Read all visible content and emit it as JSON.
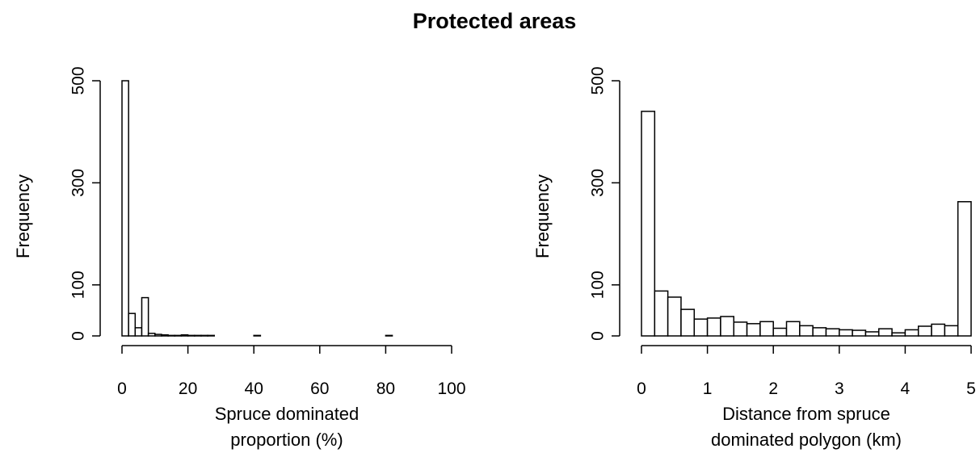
{
  "figure_title": "Protected areas",
  "chart_data": [
    {
      "type": "bar",
      "subtype": "histogram",
      "xlabel_lines": [
        "Spruce dominated",
        "proportion (%)"
      ],
      "ylabel": "Frequency",
      "xlim": [
        0,
        100
      ],
      "ylim": [
        0,
        500
      ],
      "x_ticks": [
        0,
        20,
        40,
        60,
        80,
        100
      ],
      "y_ticks": [
        0,
        100,
        300,
        500
      ],
      "bin_edges": [
        0,
        2,
        4,
        6,
        8,
        10,
        12,
        14,
        16,
        18,
        20,
        22,
        24,
        26,
        28,
        30,
        32,
        34,
        36,
        38,
        40,
        42,
        44,
        46,
        48,
        50,
        52,
        54,
        56,
        58,
        60,
        62,
        64,
        66,
        68,
        70,
        72,
        74,
        76,
        78,
        80,
        82,
        84,
        86,
        88,
        90,
        92,
        94,
        96,
        98,
        100
      ],
      "counts": [
        500,
        44,
        16,
        75,
        5,
        3,
        2,
        1,
        1,
        2,
        1,
        1,
        1,
        1,
        0,
        0,
        0,
        0,
        0,
        0,
        1,
        0,
        0,
        0,
        0,
        0,
        0,
        0,
        0,
        0,
        0,
        0,
        0,
        0,
        0,
        0,
        0,
        0,
        0,
        0,
        1,
        0,
        0,
        0,
        0,
        0,
        0,
        0,
        0,
        0
      ]
    },
    {
      "type": "bar",
      "subtype": "histogram",
      "xlabel_lines": [
        "Distance from spruce",
        "dominated polygon (km)"
      ],
      "ylabel": "Frequency",
      "xlim": [
        0,
        5
      ],
      "ylim": [
        0,
        500
      ],
      "x_ticks": [
        0,
        1,
        2,
        3,
        4,
        5
      ],
      "y_ticks": [
        0,
        100,
        300,
        500
      ],
      "bin_edges": [
        0,
        0.2,
        0.4,
        0.6,
        0.8,
        1.0,
        1.2,
        1.4,
        1.6,
        1.8,
        2.0,
        2.2,
        2.4,
        2.6,
        2.8,
        3.0,
        3.2,
        3.4,
        3.6,
        3.8,
        4.0,
        4.2,
        4.4,
        4.6,
        4.8,
        5.0
      ],
      "counts": [
        440,
        88,
        76,
        52,
        33,
        35,
        38,
        27,
        24,
        28,
        15,
        28,
        20,
        16,
        14,
        12,
        11,
        8,
        14,
        6,
        12,
        19,
        23,
        20,
        263
      ]
    }
  ]
}
